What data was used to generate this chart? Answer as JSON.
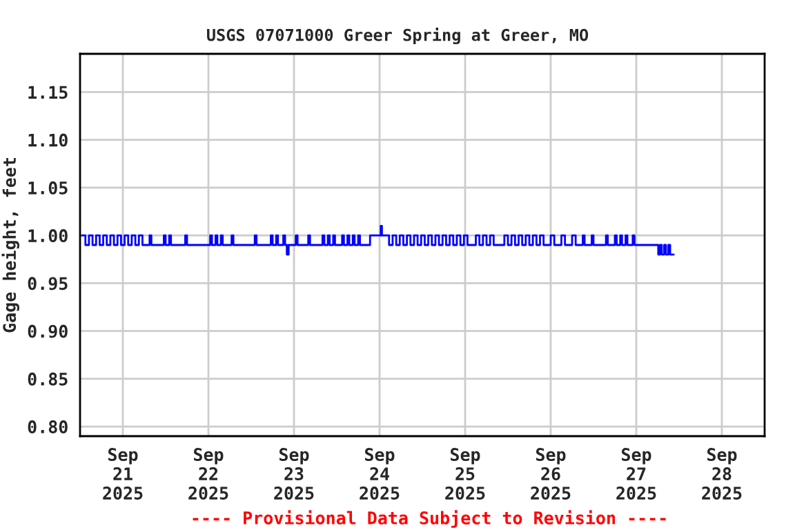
{
  "chart_data": {
    "type": "step",
    "title": "USGS 07071000 Greer Spring at Greer, MO",
    "ylabel": "Gage height, feet",
    "annotations": [
      "---- Provisional Data Subject to Revision ----"
    ],
    "xlim": [
      "2025-09-20T12:00",
      "2025-09-28T12:00"
    ],
    "xticks": [
      {
        "value": "2025-09-21",
        "label": "Sep\n21\n2025"
      },
      {
        "value": "2025-09-22",
        "label": "Sep\n22\n2025"
      },
      {
        "value": "2025-09-23",
        "label": "Sep\n23\n2025"
      },
      {
        "value": "2025-09-24",
        "label": "Sep\n24\n2025"
      },
      {
        "value": "2025-09-25",
        "label": "Sep\n25\n2025"
      },
      {
        "value": "2025-09-26",
        "label": "Sep\n26\n2025"
      },
      {
        "value": "2025-09-27",
        "label": "Sep\n27\n2025"
      },
      {
        "value": "2025-09-28",
        "label": "Sep\n28\n2025"
      }
    ],
    "ylim": [
      0.79,
      1.19
    ],
    "yticks": [
      {
        "value": 0.8,
        "label": "0.80"
      },
      {
        "value": 0.85,
        "label": "0.85"
      },
      {
        "value": 0.9,
        "label": "0.90"
      },
      {
        "value": 0.95,
        "label": "0.95"
      },
      {
        "value": 1.0,
        "label": "1.00"
      },
      {
        "value": 1.05,
        "label": "1.05"
      },
      {
        "value": 1.1,
        "label": "1.10"
      },
      {
        "value": 1.15,
        "label": "1.15"
      }
    ],
    "grid": true,
    "line_style": "solid",
    "marker": "none",
    "series": [
      {
        "color": "#0000ff",
        "x": [
          "2025-09-20T12:30",
          "2025-09-20T13:30",
          "2025-09-20T14:30",
          "2025-09-20T15:30",
          "2025-09-20T16:30",
          "2025-09-20T17:30",
          "2025-09-20T18:30",
          "2025-09-20T19:30",
          "2025-09-20T20:30",
          "2025-09-20T21:30",
          "2025-09-20T22:30",
          "2025-09-20T23:30",
          "2025-09-21T00:30",
          "2025-09-21T01:30",
          "2025-09-21T02:30",
          "2025-09-21T03:30",
          "2025-09-21T04:30",
          "2025-09-21T05:30",
          "2025-09-21T07:30",
          "2025-09-21T08:00",
          "2025-09-21T11:30",
          "2025-09-21T12:00",
          "2025-09-21T13:00",
          "2025-09-21T13:30",
          "2025-09-21T17:30",
          "2025-09-21T18:00",
          "2025-09-22T00:30",
          "2025-09-22T01:00",
          "2025-09-22T02:00",
          "2025-09-22T02:30",
          "2025-09-22T03:30",
          "2025-09-22T04:00",
          "2025-09-22T06:30",
          "2025-09-22T07:00",
          "2025-09-22T13:00",
          "2025-09-22T13:30",
          "2025-09-22T17:30",
          "2025-09-22T18:00",
          "2025-09-22T19:00",
          "2025-09-22T19:30",
          "2025-09-22T21:00",
          "2025-09-22T21:30",
          "2025-09-22T22:00",
          "2025-09-22T22:30",
          "2025-09-23T00:30",
          "2025-09-23T01:00",
          "2025-09-23T04:00",
          "2025-09-23T04:30",
          "2025-09-23T08:00",
          "2025-09-23T08:30",
          "2025-09-23T09:30",
          "2025-09-23T10:00",
          "2025-09-23T11:00",
          "2025-09-23T11:30",
          "2025-09-23T13:30",
          "2025-09-23T14:00",
          "2025-09-23T15:00",
          "2025-09-23T15:30",
          "2025-09-23T16:30",
          "2025-09-23T17:00",
          "2025-09-23T18:00",
          "2025-09-23T18:30",
          "2025-09-23T21:20",
          "2025-09-24T00:20",
          "2025-09-24T00:40",
          "2025-09-24T02:40",
          "2025-09-24T03:40",
          "2025-09-24T04:40",
          "2025-09-24T05:40",
          "2025-09-24T06:40",
          "2025-09-24T07:40",
          "2025-09-24T08:40",
          "2025-09-24T09:40",
          "2025-09-24T10:40",
          "2025-09-24T11:40",
          "2025-09-24T12:40",
          "2025-09-24T13:40",
          "2025-09-24T14:40",
          "2025-09-24T15:40",
          "2025-09-24T16:40",
          "2025-09-24T17:40",
          "2025-09-24T18:40",
          "2025-09-24T19:40",
          "2025-09-24T20:40",
          "2025-09-24T21:40",
          "2025-09-24T22:40",
          "2025-09-24T23:40",
          "2025-09-25T00:40",
          "2025-09-25T03:00",
          "2025-09-25T04:00",
          "2025-09-25T05:00",
          "2025-09-25T06:00",
          "2025-09-25T07:00",
          "2025-09-25T08:00",
          "2025-09-25T11:00",
          "2025-09-25T12:00",
          "2025-09-25T13:00",
          "2025-09-25T14:00",
          "2025-09-25T15:00",
          "2025-09-25T16:00",
          "2025-09-25T17:00",
          "2025-09-25T18:00",
          "2025-09-25T19:00",
          "2025-09-25T20:00",
          "2025-09-25T21:00",
          "2025-09-25T22:00",
          "2025-09-26T00:00",
          "2025-09-26T01:00",
          "2025-09-26T03:00",
          "2025-09-26T04:00",
          "2025-09-26T06:00",
          "2025-09-26T07:00",
          "2025-09-26T09:00",
          "2025-09-26T09:30",
          "2025-09-26T11:30",
          "2025-09-26T12:00",
          "2025-09-26T15:30",
          "2025-09-26T16:00",
          "2025-09-26T18:00",
          "2025-09-26T18:30",
          "2025-09-26T19:30",
          "2025-09-26T20:00",
          "2025-09-26T21:00",
          "2025-09-26T21:30",
          "2025-09-26T23:00",
          "2025-09-26T23:30",
          "2025-09-27T06:00",
          "2025-09-27T06:10",
          "2025-09-27T06:40",
          "2025-09-27T07:10",
          "2025-09-27T07:50",
          "2025-09-27T08:20",
          "2025-09-27T09:00",
          "2025-09-27T09:30",
          "2025-09-27T10:30"
        ],
        "values": [
          1.0,
          0.99,
          1.0,
          0.99,
          1.0,
          0.99,
          1.0,
          0.99,
          1.0,
          0.99,
          1.0,
          0.99,
          1.0,
          0.99,
          1.0,
          0.99,
          1.0,
          0.99,
          1.0,
          0.99,
          1.0,
          0.99,
          1.0,
          0.99,
          1.0,
          0.99,
          1.0,
          0.99,
          1.0,
          0.99,
          1.0,
          0.99,
          1.0,
          0.99,
          1.0,
          0.99,
          1.0,
          0.99,
          1.0,
          0.99,
          1.0,
          0.99,
          0.98,
          0.99,
          1.0,
          0.99,
          1.0,
          0.99,
          1.0,
          0.99,
          1.0,
          0.99,
          1.0,
          0.99,
          1.0,
          0.99,
          1.0,
          0.99,
          1.0,
          0.99,
          1.0,
          0.99,
          1.0,
          1.01,
          1.0,
          0.99,
          1.0,
          0.99,
          1.0,
          0.99,
          1.0,
          0.99,
          1.0,
          0.99,
          1.0,
          0.99,
          1.0,
          0.99,
          1.0,
          0.99,
          1.0,
          0.99,
          1.0,
          0.99,
          1.0,
          0.99,
          1.0,
          0.99,
          1.0,
          0.99,
          1.0,
          0.99,
          1.0,
          0.99,
          1.0,
          0.99,
          1.0,
          0.99,
          1.0,
          0.99,
          1.0,
          0.99,
          1.0,
          0.99,
          1.0,
          0.99,
          1.0,
          0.99,
          1.0,
          0.99,
          1.0,
          0.99,
          1.0,
          0.99,
          1.0,
          0.99,
          1.0,
          0.99,
          1.0,
          0.99,
          1.0,
          0.99,
          1.0,
          0.99,
          1.0,
          0.99,
          0.99,
          0.98,
          0.99,
          0.98,
          0.99,
          0.98,
          0.99,
          0.98,
          0.98
        ]
      }
    ]
  }
}
